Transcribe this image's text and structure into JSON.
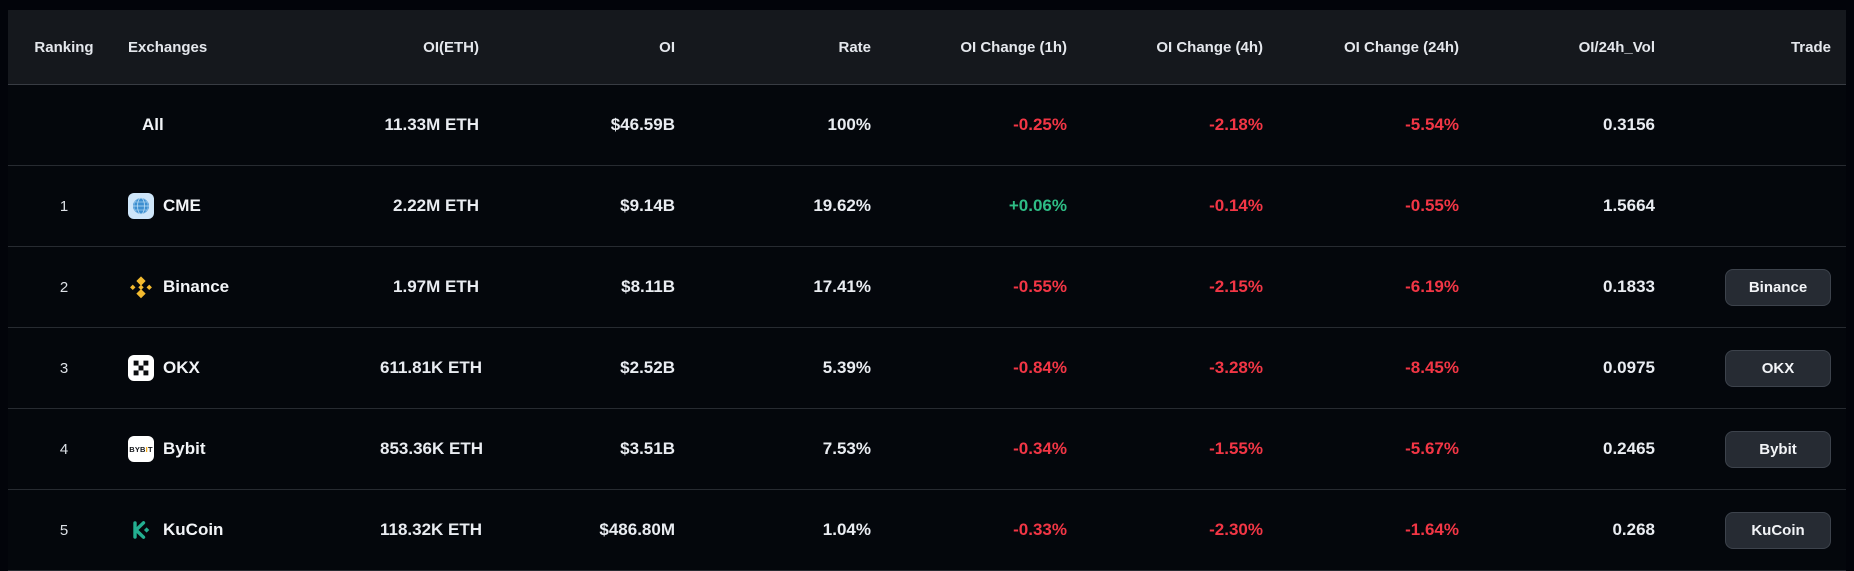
{
  "colors": {
    "positive": "#2ebd85",
    "negative": "#f23645",
    "binance_gold": "#f3ba2f",
    "kucoin_green": "#23af91",
    "bybit_accent": "#f7a600",
    "cme_blue": "#3d8fd1"
  },
  "table": {
    "columns": [
      {
        "key": "ranking",
        "label": "Ranking"
      },
      {
        "key": "exchange",
        "label": "Exchanges"
      },
      {
        "key": "oi_eth",
        "label": "OI(ETH)"
      },
      {
        "key": "oi",
        "label": "OI"
      },
      {
        "key": "rate",
        "label": "Rate"
      },
      {
        "key": "chg_1h",
        "label": "OI Change (1h)"
      },
      {
        "key": "chg_4h",
        "label": "OI Change (4h)"
      },
      {
        "key": "chg_24h",
        "label": "OI Change (24h)"
      },
      {
        "key": "oi_24h_vol",
        "label": "OI/24h_Vol"
      },
      {
        "key": "trade",
        "label": "Trade"
      }
    ],
    "rows": [
      {
        "ranking": "",
        "exchange": "All",
        "icon": "",
        "oi_eth": "11.33M ETH",
        "oi": "$46.59B",
        "rate": "100%",
        "chg_1h": "-0.25%",
        "chg_4h": "-2.18%",
        "chg_24h": "-5.54%",
        "oi_24h_vol": "0.3156",
        "trade": ""
      },
      {
        "ranking": "1",
        "exchange": "CME",
        "icon": "cme",
        "oi_eth": "2.22M ETH",
        "oi": "$9.14B",
        "rate": "19.62%",
        "chg_1h": "+0.06%",
        "chg_4h": "-0.14%",
        "chg_24h": "-0.55%",
        "oi_24h_vol": "1.5664",
        "trade": ""
      },
      {
        "ranking": "2",
        "exchange": "Binance",
        "icon": "binance",
        "oi_eth": "1.97M ETH",
        "oi": "$8.11B",
        "rate": "17.41%",
        "chg_1h": "-0.55%",
        "chg_4h": "-2.15%",
        "chg_24h": "-6.19%",
        "oi_24h_vol": "0.1833",
        "trade": "Binance"
      },
      {
        "ranking": "3",
        "exchange": "OKX",
        "icon": "okx",
        "oi_eth": "611.81K ETH",
        "oi": "$2.52B",
        "rate": "5.39%",
        "chg_1h": "-0.84%",
        "chg_4h": "-3.28%",
        "chg_24h": "-8.45%",
        "oi_24h_vol": "0.0975",
        "trade": "OKX"
      },
      {
        "ranking": "4",
        "exchange": "Bybit",
        "icon": "bybit",
        "oi_eth": "853.36K ETH",
        "oi": "$3.51B",
        "rate": "7.53%",
        "chg_1h": "-0.34%",
        "chg_4h": "-1.55%",
        "chg_24h": "-5.67%",
        "oi_24h_vol": "0.2465",
        "trade": "Bybit"
      },
      {
        "ranking": "5",
        "exchange": "KuCoin",
        "icon": "kucoin",
        "oi_eth": "118.32K ETH",
        "oi": "$486.80M",
        "rate": "1.04%",
        "chg_1h": "-0.33%",
        "chg_4h": "-2.30%",
        "chg_24h": "-1.64%",
        "oi_24h_vol": "0.268",
        "trade": "KuCoin"
      }
    ]
  }
}
